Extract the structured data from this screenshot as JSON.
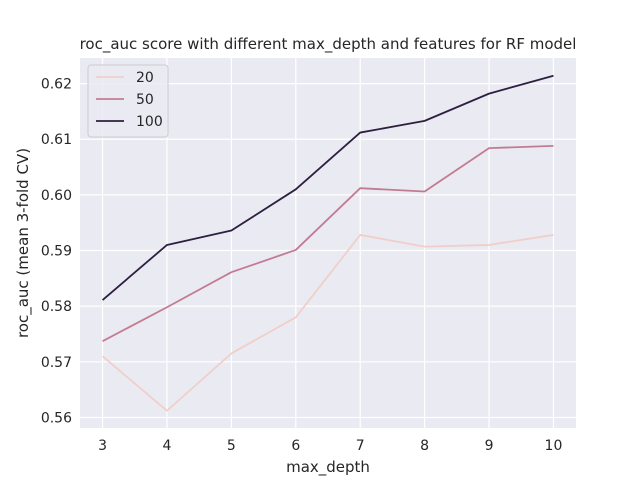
{
  "chart_data": {
    "type": "line",
    "title": "roc_auc score with different max_depth and features for RF model",
    "xlabel": "max_depth",
    "ylabel": "roc_auc (mean 3-fold CV)",
    "x": [
      3,
      4,
      5,
      6,
      7,
      8,
      9,
      10
    ],
    "xticks": [
      "3",
      "4",
      "5",
      "6",
      "7",
      "8",
      "9",
      "10"
    ],
    "yticks": [
      "0.56",
      "0.57",
      "0.58",
      "0.59",
      "0.60",
      "0.61",
      "0.62"
    ],
    "ytick_values": [
      0.56,
      0.57,
      0.58,
      0.59,
      0.6,
      0.61,
      0.62
    ],
    "xlim": [
      2.65,
      10.35
    ],
    "ylim": [
      0.5581,
      0.6246
    ],
    "grid": true,
    "legend_position": "top-left",
    "series": [
      {
        "name": "20",
        "color": "#f1cfc9",
        "values": [
          0.571,
          0.5612,
          0.5715,
          0.578,
          0.5928,
          0.5907,
          0.591,
          0.5928
        ]
      },
      {
        "name": "50",
        "color": "#c27c92",
        "values": [
          0.5737,
          0.5798,
          0.5861,
          0.5901,
          0.6012,
          0.6006,
          0.6084,
          0.6088
        ]
      },
      {
        "name": "100",
        "color": "#2e1f40",
        "values": [
          0.5811,
          0.591,
          0.5936,
          0.601,
          0.6112,
          0.6133,
          0.6182,
          0.6214
        ]
      }
    ]
  }
}
